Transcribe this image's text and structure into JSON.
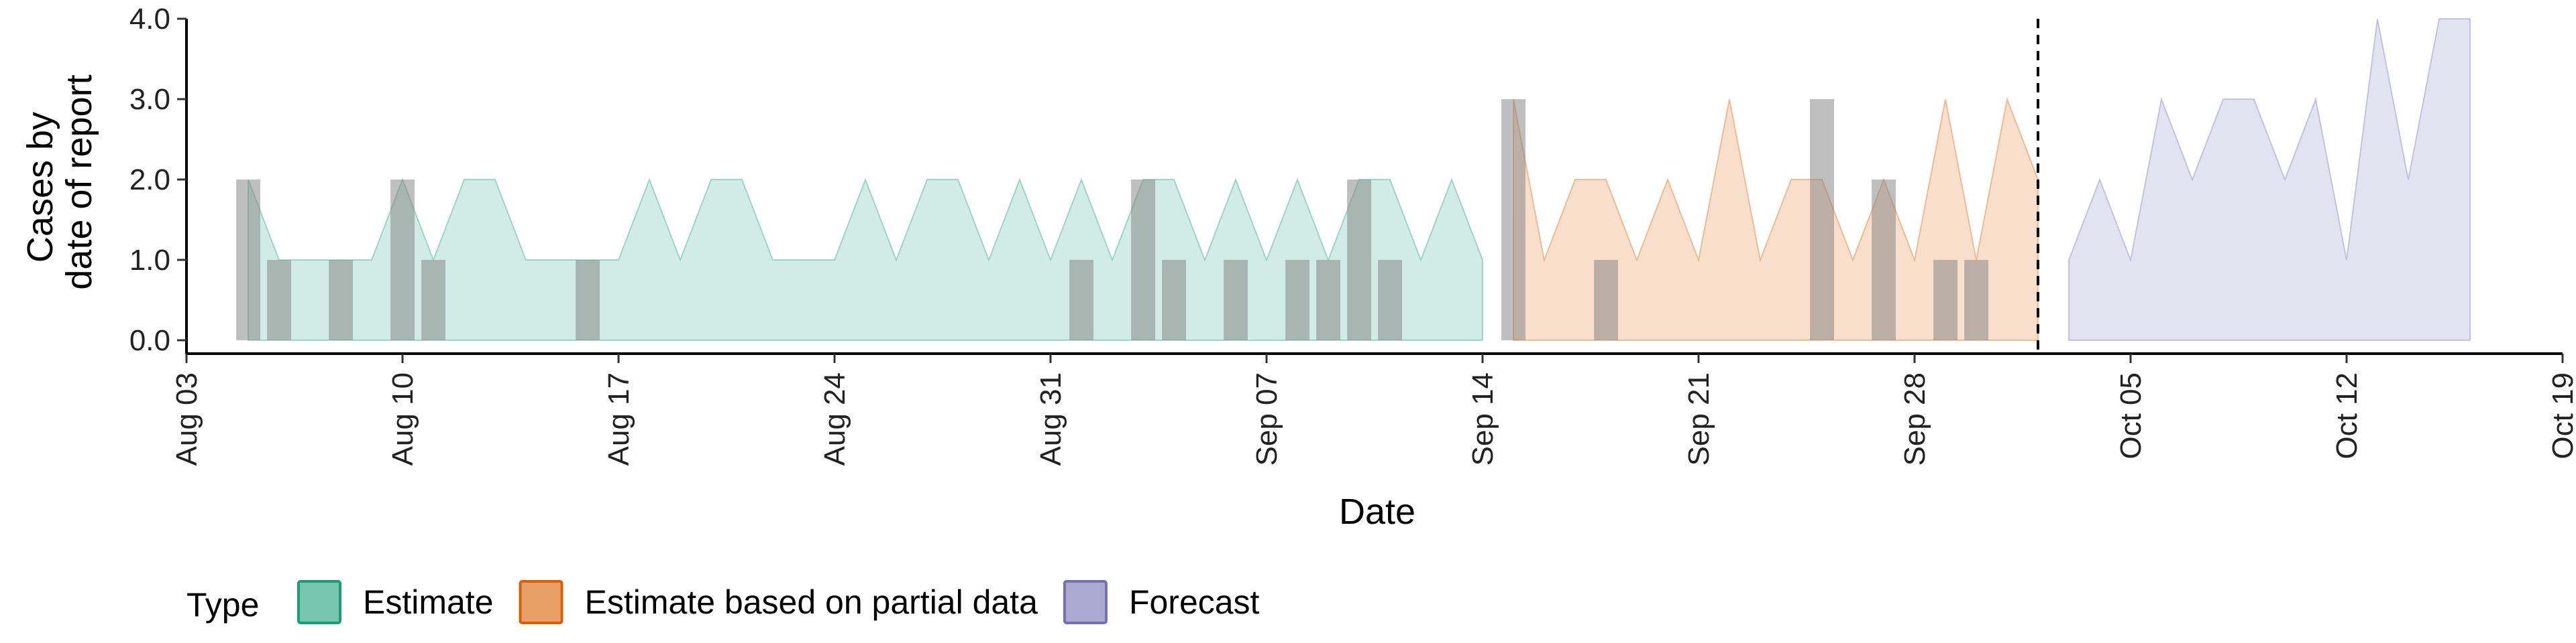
{
  "chart_data": {
    "type": "area",
    "xlabel": "Date",
    "ylabel_lines": [
      "Cases by",
      "date of report"
    ],
    "x_ticks": [
      "Aug 03",
      "Aug 10",
      "Aug 17",
      "Aug 24",
      "Aug 31",
      "Sep 07",
      "Sep 14",
      "Sep 21",
      "Sep 28",
      "Oct 05",
      "Oct 12",
      "Oct 19"
    ],
    "x_range": [
      "2020-08-03",
      "2020-10-19"
    ],
    "y_ticks": [
      "0.0",
      "1.0",
      "2.0",
      "3.0",
      "4.0"
    ],
    "ylim": [
      0,
      4
    ],
    "forecast_divider_date": "2020-10-02",
    "legend": {
      "title": "Type",
      "placement": "bottom",
      "items": [
        {
          "key": "estimate",
          "label": "Estimate",
          "fill": "#1b9e77",
          "stroke": "#1b9e77"
        },
        {
          "key": "partial",
          "label": "Estimate based on partial data",
          "fill": "#d95f02",
          "stroke": "#d95f02"
        },
        {
          "key": "forecast",
          "label": "Forecast",
          "fill": "#7570b3",
          "stroke": "#7570b3"
        }
      ]
    },
    "series": [
      {
        "key": "estimate",
        "points": [
          [
            "2020-08-05",
            2
          ],
          [
            "2020-08-06",
            1
          ],
          [
            "2020-08-07",
            1
          ],
          [
            "2020-08-08",
            1
          ],
          [
            "2020-08-09",
            1
          ],
          [
            "2020-08-10",
            2
          ],
          [
            "2020-08-11",
            1
          ],
          [
            "2020-08-12",
            2
          ],
          [
            "2020-08-13",
            2
          ],
          [
            "2020-08-14",
            1
          ],
          [
            "2020-08-15",
            1
          ],
          [
            "2020-08-16",
            1
          ],
          [
            "2020-08-17",
            1
          ],
          [
            "2020-08-18",
            2
          ],
          [
            "2020-08-19",
            1
          ],
          [
            "2020-08-20",
            2
          ],
          [
            "2020-08-21",
            2
          ],
          [
            "2020-08-22",
            1
          ],
          [
            "2020-08-23",
            1
          ],
          [
            "2020-08-24",
            1
          ],
          [
            "2020-08-25",
            2
          ],
          [
            "2020-08-26",
            1
          ],
          [
            "2020-08-27",
            2
          ],
          [
            "2020-08-28",
            2
          ],
          [
            "2020-08-29",
            1
          ],
          [
            "2020-08-30",
            2
          ],
          [
            "2020-08-31",
            1
          ],
          [
            "2020-09-01",
            2
          ],
          [
            "2020-09-02",
            1
          ],
          [
            "2020-09-03",
            2
          ],
          [
            "2020-09-04",
            2
          ],
          [
            "2020-09-05",
            1
          ],
          [
            "2020-09-06",
            2
          ],
          [
            "2020-09-07",
            1
          ],
          [
            "2020-09-08",
            2
          ],
          [
            "2020-09-09",
            1
          ],
          [
            "2020-09-10",
            2
          ],
          [
            "2020-09-11",
            2
          ],
          [
            "2020-09-12",
            1
          ],
          [
            "2020-09-13",
            2
          ],
          [
            "2020-09-14",
            1
          ]
        ]
      },
      {
        "key": "partial",
        "points": [
          [
            "2020-09-15",
            3
          ],
          [
            "2020-09-16",
            1
          ],
          [
            "2020-09-17",
            2
          ],
          [
            "2020-09-18",
            2
          ],
          [
            "2020-09-19",
            1
          ],
          [
            "2020-09-20",
            2
          ],
          [
            "2020-09-21",
            1
          ],
          [
            "2020-09-22",
            3
          ],
          [
            "2020-09-23",
            1
          ],
          [
            "2020-09-24",
            2
          ],
          [
            "2020-09-25",
            2
          ],
          [
            "2020-09-26",
            1
          ],
          [
            "2020-09-27",
            2
          ],
          [
            "2020-09-28",
            1
          ],
          [
            "2020-09-29",
            3
          ],
          [
            "2020-09-30",
            1
          ],
          [
            "2020-10-01",
            3
          ],
          [
            "2020-10-02",
            2
          ]
        ]
      },
      {
        "key": "forecast",
        "points": [
          [
            "2020-10-03",
            1
          ],
          [
            "2020-10-04",
            2
          ],
          [
            "2020-10-05",
            1
          ],
          [
            "2020-10-06",
            3
          ],
          [
            "2020-10-07",
            2
          ],
          [
            "2020-10-08",
            3
          ],
          [
            "2020-10-09",
            3
          ],
          [
            "2020-10-10",
            2
          ],
          [
            "2020-10-11",
            3
          ],
          [
            "2020-10-12",
            1
          ],
          [
            "2020-10-13",
            4
          ],
          [
            "2020-10-14",
            2
          ],
          [
            "2020-10-15",
            4
          ],
          [
            "2020-10-16",
            4
          ]
        ]
      }
    ],
    "observed_cases": {
      "color": "#808080",
      "points": [
        [
          "2020-08-05",
          2
        ],
        [
          "2020-08-06",
          1
        ],
        [
          "2020-08-08",
          1
        ],
        [
          "2020-08-10",
          2
        ],
        [
          "2020-08-11",
          1
        ],
        [
          "2020-08-16",
          1
        ],
        [
          "2020-09-01",
          1
        ],
        [
          "2020-09-03",
          2
        ],
        [
          "2020-09-04",
          1
        ],
        [
          "2020-09-06",
          1
        ],
        [
          "2020-09-08",
          1
        ],
        [
          "2020-09-09",
          1
        ],
        [
          "2020-09-10",
          2
        ],
        [
          "2020-09-11",
          1
        ],
        [
          "2020-09-15",
          3
        ],
        [
          "2020-09-18",
          1
        ],
        [
          "2020-09-25",
          3
        ],
        [
          "2020-09-27",
          2
        ],
        [
          "2020-09-29",
          1
        ],
        [
          "2020-09-30",
          1
        ]
      ]
    }
  }
}
